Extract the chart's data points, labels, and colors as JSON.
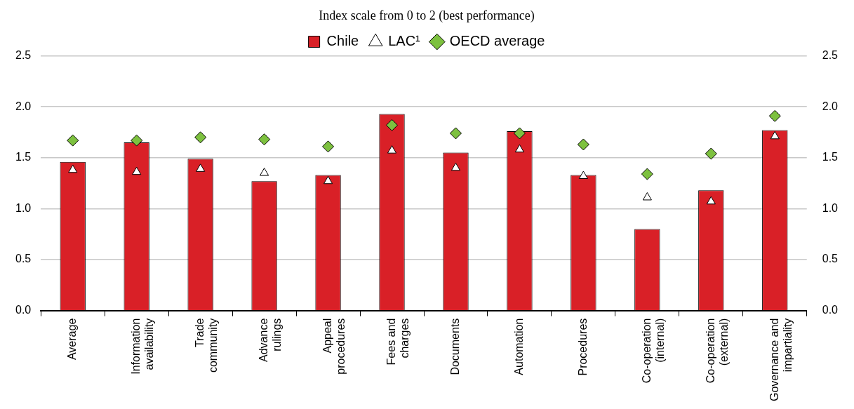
{
  "chart_data": {
    "type": "bar",
    "title": "Index scale from 0 to 2 (best performance)",
    "categories": [
      "Average",
      "Information availability",
      "Trade community",
      "Advance rulings",
      "Appeal procedures",
      "Fees and charges",
      "Documents",
      "Automation",
      "Procedures",
      "Co-operation (internal)",
      "Co-operation (external)",
      "Governance and impartiality"
    ],
    "series": [
      {
        "name": "Chile",
        "color": "#d92027",
        "values": [
          1.46,
          1.65,
          1.49,
          1.27,
          1.33,
          1.93,
          1.55,
          1.76,
          1.33,
          0.8,
          1.18,
          1.77
        ]
      },
      {
        "name": "LAC¹",
        "type": "scatter",
        "marker": "triangle",
        "color": "#ffffff",
        "values": [
          1.38,
          1.36,
          1.39,
          1.35,
          1.27,
          1.57,
          1.4,
          1.58,
          1.32,
          1.11,
          1.07,
          1.71
        ]
      },
      {
        "name": "OECD average",
        "type": "scatter",
        "marker": "diamond",
        "color": "#7dc13f",
        "values": [
          1.67,
          1.67,
          1.7,
          1.68,
          1.61,
          1.82,
          1.74,
          1.74,
          1.63,
          1.34,
          1.54,
          1.91
        ]
      }
    ],
    "ylim": [
      0,
      2.5
    ],
    "yticks": [
      {
        "value": 0,
        "label": "0.0"
      },
      0.5,
      {
        "value": 1,
        "label": "1.0"
      },
      1.5,
      {
        "value": 2,
        "label": "2.0"
      },
      2.5
    ],
    "y2lim": [
      0,
      2.5
    ],
    "y2ticks": [
      {
        "value": 0,
        "label": "0.0"
      },
      0.5,
      {
        "value": 1,
        "label": "1.0"
      },
      1.5,
      {
        "value": 2,
        "label": "2.0"
      },
      2.5
    ],
    "grid": "y",
    "legend": "top"
  }
}
